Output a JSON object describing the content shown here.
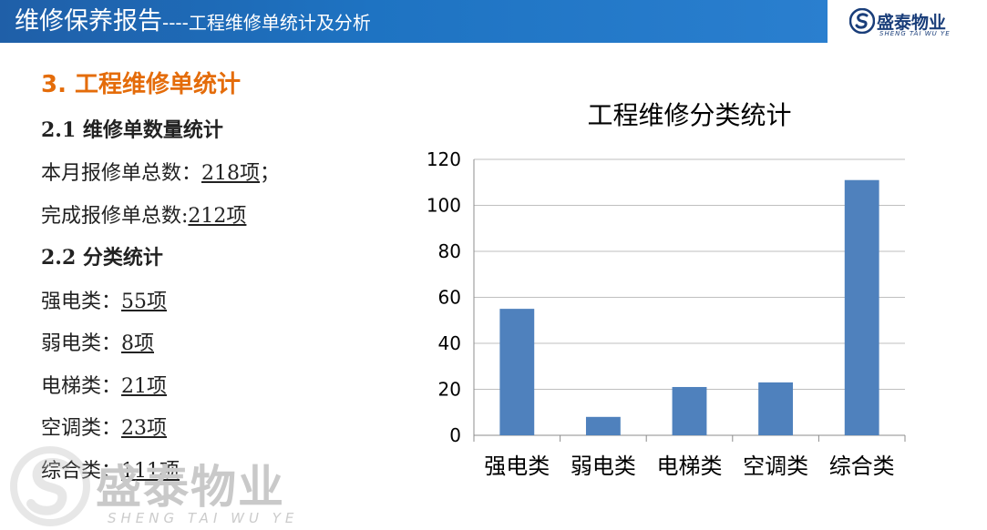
{
  "header": {
    "title": "维修保养报告",
    "separator": "----",
    "subtitle": "工程维修单统计及分析",
    "brand_name": "盛泰物业",
    "brand_pinyin": "SHENG TAI WU YE",
    "band_color": "#1e6fbd"
  },
  "section": {
    "title": "3. 工程维修单统计",
    "sub1": "2.1  维修单数量统计",
    "line1_label": "本月报修单总数：",
    "line1_value": "218项",
    "line1_suffix": "；",
    "line2_label": "完成报修单总数:",
    "line2_value": "212项",
    "sub2": "2.2  分类统计",
    "cats": [
      {
        "label": "强电类：",
        "value": "55项"
      },
      {
        "label": "弱电类：",
        "value": "8项"
      },
      {
        "label": "电梯类：",
        "value": "21项"
      },
      {
        "label": "空调类：",
        "value": "23项"
      },
      {
        "label": "综合类：",
        "value": "111项"
      }
    ]
  },
  "watermark": {
    "text": "盛泰物业",
    "pinyin": "SHENG TAI WU YE"
  },
  "chart_data": {
    "type": "bar",
    "title": "工程维修分类统计",
    "categories": [
      "强电类",
      "弱电类",
      "电梯类",
      "空调类",
      "综合类"
    ],
    "values": [
      55,
      8,
      21,
      23,
      111
    ],
    "ylim": [
      0,
      120
    ],
    "yticks": [
      0,
      20,
      40,
      60,
      80,
      100,
      120
    ],
    "grid": true,
    "bar_color": "#4f81bd"
  }
}
